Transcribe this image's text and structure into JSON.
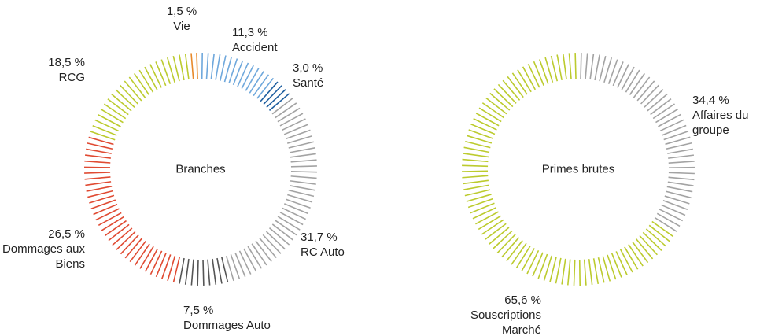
{
  "chart_data": [
    {
      "type": "donut",
      "title": "Branches",
      "categories": [
        "Vie",
        "Accident",
        "Santé",
        "RC Auto",
        "Dommages Auto",
        "Dommages aux Biens",
        "RCG"
      ],
      "values": [
        1.5,
        11.3,
        3.0,
        31.7,
        7.5,
        26.5,
        18.5
      ],
      "value_labels": [
        "1,5 %",
        "11,3 %",
        "3,0 %",
        "31,7 %",
        "7,5 %",
        "26,5 %",
        "18,5 %"
      ],
      "colors": [
        "#e8892a",
        "#6fa8dc",
        "#1f5fa0",
        "#a3a3a3",
        "#555555",
        "#e04a32",
        "#bccb2e"
      ]
    },
    {
      "type": "donut",
      "title": "Primes brutes",
      "categories": [
        "Affaires du groupe",
        "Souscriptions Marché"
      ],
      "values": [
        34.4,
        65.6
      ],
      "value_labels": [
        "34,4 %",
        "65,6 %"
      ],
      "colors": [
        "#a3a3a3",
        "#bccb2e"
      ]
    }
  ]
}
